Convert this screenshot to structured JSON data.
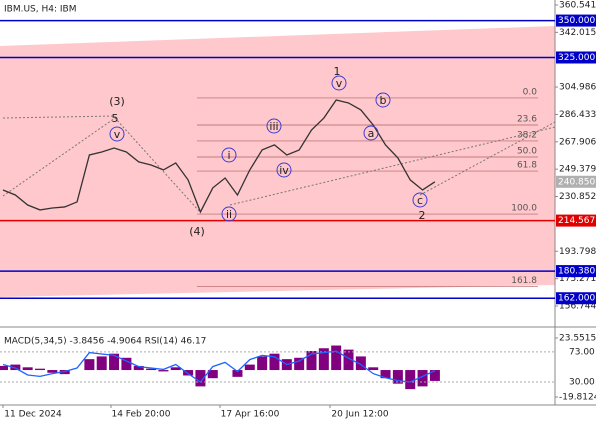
{
  "header": {
    "title": "IBM.US, H4:  IBM"
  },
  "chart_data": [
    {
      "type": "line",
      "name": "price",
      "values": [
        235.3,
        231.9,
        225.1,
        221.8,
        223.1,
        223.8,
        227.2,
        259.0,
        261.0,
        263.7,
        261.0,
        254.3,
        252.2,
        248.9,
        253.6,
        242.1,
        220.4,
        236.7,
        243.4,
        231.9,
        248.9,
        262.4,
        265.8,
        259.0,
        262.4,
        275.9,
        284.0,
        296.2,
        294.2,
        289.5,
        279.3,
        265.8,
        257.0,
        242.1,
        235.3,
        240.85
      ],
      "color": "#333333",
      "ylim": [
        152.68,
        362.57
      ],
      "yticks": [
        360.541,
        342.015,
        304.986,
        286.433,
        267.906,
        249.379,
        230.852,
        193.798,
        175.271,
        156.744
      ],
      "levels": [
        {
          "value": 350,
          "label": "350.000",
          "color": "#0000c8"
        },
        {
          "value": 325,
          "label": "325.000",
          "color": "#0000c8"
        },
        {
          "value": 214.567,
          "label": "214.567",
          "color": "#e00000"
        },
        {
          "value": 180.38,
          "label": "180.380",
          "color": "#0000c8"
        },
        {
          "value": 162,
          "label": "162.000",
          "color": "#0000c8"
        },
        {
          "value": 240.85,
          "label": "240.850",
          "color": "#b0b0b0"
        }
      ],
      "fib_levels": [
        {
          "label": "0.0",
          "price": 297.6
        },
        {
          "label": "23.6",
          "price": 279.3
        },
        {
          "label": "38.2",
          "price": 268.5
        },
        {
          "label": "50.0",
          "price": 257.6
        },
        {
          "label": "61.8",
          "price": 248.1
        },
        {
          "label": "100.0",
          "price": 219.0
        },
        {
          "label": "161.8",
          "price": 170.0
        }
      ],
      "annotations": [
        "(3)",
        "5",
        "v",
        "(4)",
        "i",
        "ii",
        "iii",
        "iv",
        "v",
        "1",
        "a",
        "b",
        "c",
        "2"
      ],
      "x_labels": [
        "11 Dec 2024",
        "14 Feb 20:00",
        "17 Apr 16:00",
        "20 Jun 12:00"
      ]
    },
    {
      "type": "bar",
      "name": "MACD(5,34,5) -3.8456 -4.9064 RSI(14) 46.17",
      "values": [
        3,
        4,
        2,
        1,
        -2,
        -3,
        0,
        8,
        10,
        12,
        9,
        3,
        1,
        -1,
        2,
        -4,
        -12,
        -6,
        0,
        -5,
        4,
        10,
        12,
        8,
        9,
        14,
        16,
        18,
        15,
        10,
        2,
        -6,
        -10,
        -14,
        -12,
        -8
      ],
      "color": "#800080",
      "ylim": [
        -24.2,
        27.2
      ],
      "yticks": [
        23.5515,
        -19.8124
      ],
      "rsi": {
        "values": [
          55,
          50,
          40,
          38,
          42,
          45,
          50,
          72,
          70,
          68,
          60,
          52,
          50,
          48,
          55,
          42,
          30,
          52,
          58,
          45,
          62,
          68,
          66,
          55,
          60,
          70,
          72,
          74,
          64,
          55,
          42,
          36,
          32,
          30,
          38,
          46.17
        ],
        "color": "#1e64ff",
        "ylim": [
          0,
          100
        ],
        "yticks": [
          {
            "value": 73,
            "label": "73.00"
          },
          {
            "value": 30,
            "label": "30.00"
          }
        ]
      }
    }
  ]
}
